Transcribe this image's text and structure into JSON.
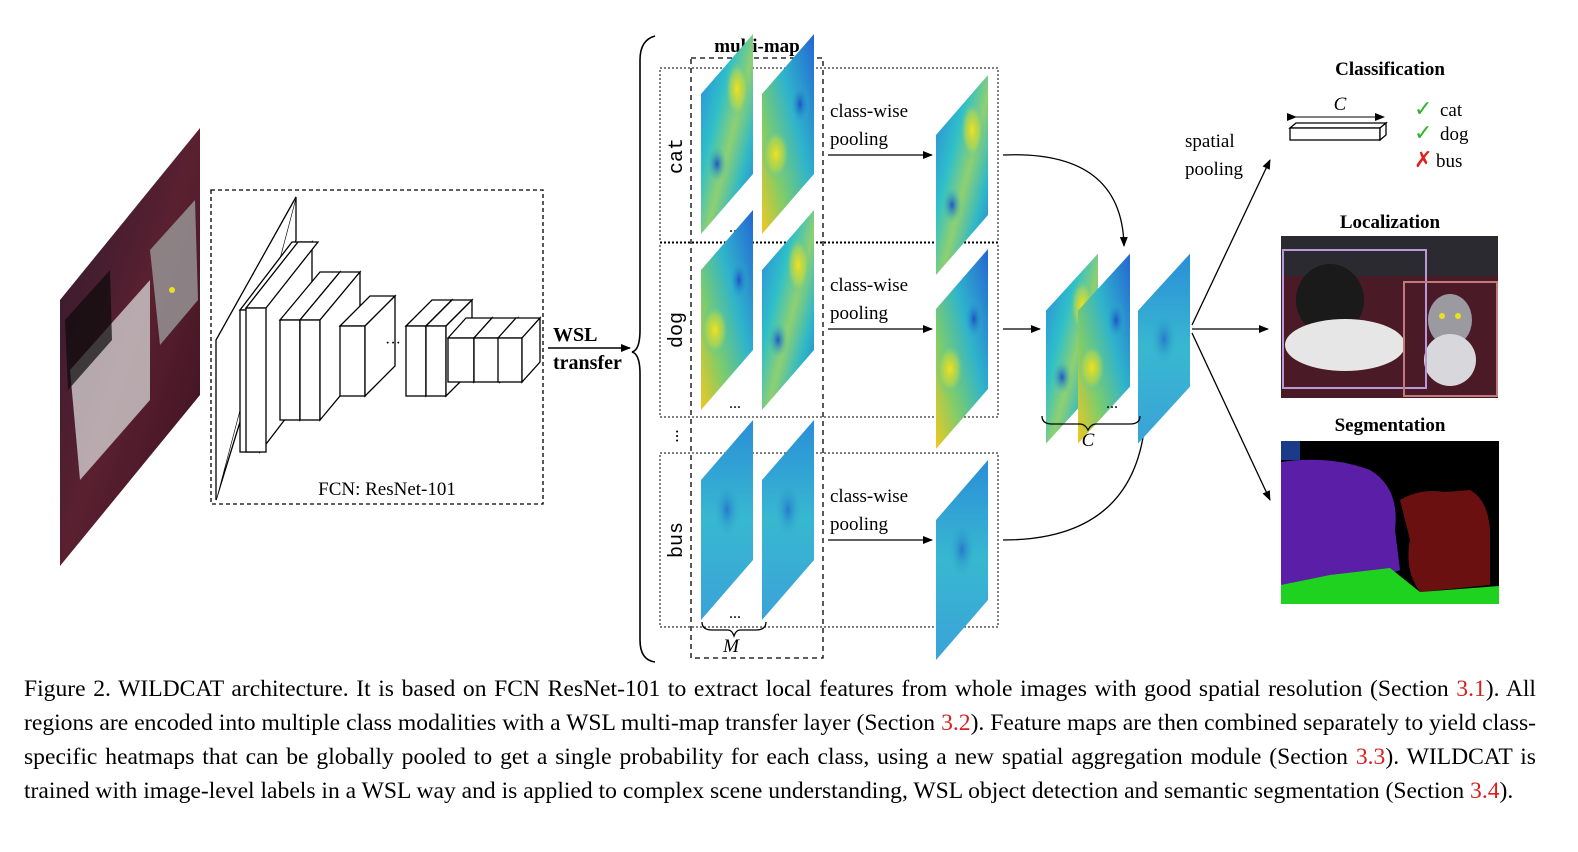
{
  "figure": {
    "backbone_label": "FCN: ResNet-101",
    "wsl_label": [
      "WSL",
      "transfer"
    ],
    "multimap_label": "multi-map",
    "class_labels": [
      "cat",
      "dog",
      "bus"
    ],
    "pooling_label": [
      "class-wise",
      "pooling"
    ],
    "spatial_pooling_label": [
      "spatial",
      "pooling"
    ],
    "ellipsis": "...",
    "m_label": "M",
    "c_label": "C",
    "tasks": {
      "classification": {
        "title": "Classification",
        "vector_label": "C",
        "results": [
          {
            "mark": "✓",
            "label": "cat",
            "color": "#2db52d"
          },
          {
            "mark": "✓",
            "label": "dog",
            "color": "#2db52d"
          },
          {
            "mark": "✗",
            "label": "bus",
            "color": "#e02020"
          }
        ]
      },
      "localization": {
        "title": "Localization"
      },
      "segmentation": {
        "title": "Segmentation"
      }
    },
    "colors": {
      "heatmap_low": "#1f6fd8",
      "heatmap_mid": "#2fc0c8",
      "heatmap_high": "#f2d41c",
      "seg_person": "#5a1fa6",
      "seg_cat": "#6a1010",
      "seg_grass": "#1fd21f",
      "seg_sky": "#1a3a8a",
      "bbox_dog": "#b89ad8",
      "bbox_cat": "#c07a7a"
    }
  },
  "caption": {
    "t0": "Figure 2. WILDCAT architecture. It is based on FCN ResNet-101 to extract local features from whole images with good spatial resolution (Section ",
    "r1": "3.1",
    "t1": "). All regions are encoded into multiple class modalities with a WSL multi-map transfer layer (Section ",
    "r2": "3.2",
    "t2": "). Feature maps are then combined separately to yield class-specific heatmaps that can be globally pooled to get a single probability for each class, using a new spatial aggregation module (Section ",
    "r3": "3.3",
    "t3": "). WILDCAT is trained with image-level labels in a WSL way and is applied to complex scene understanding, WSL object detection and semantic segmentation (Section ",
    "r4": "3.4",
    "t4": ")."
  }
}
